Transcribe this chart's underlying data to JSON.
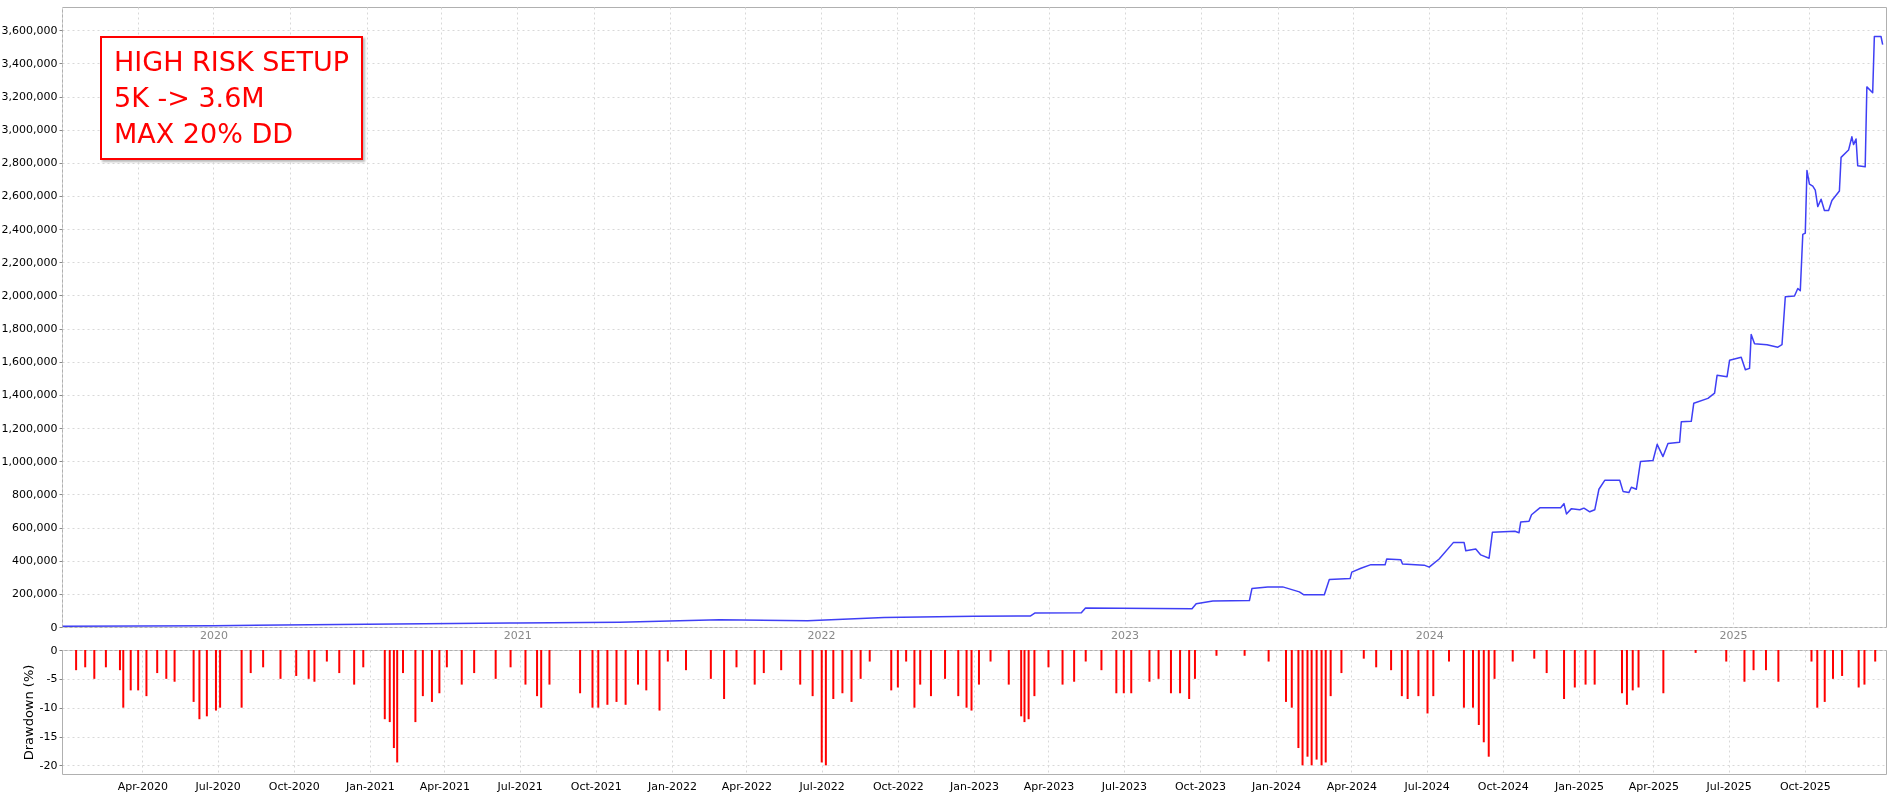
{
  "chart_data": [
    {
      "type": "line",
      "annotations": [
        "HIGH RISK SETUP",
        "5K -> 3.6M",
        "MAX 20% DD"
      ],
      "x": [
        "2020-01-02",
        "2020-07-01",
        "2021-01-01",
        "2021-07-01",
        "2021-11-01",
        "2022-03-01",
        "2022-06-15",
        "2022-09-15",
        "2023-01-01",
        "2023-03-10",
        "2023-03-15",
        "2023-05-10",
        "2023-05-15",
        "2023-09-20",
        "2023-09-25",
        "2023-10-15",
        "2023-11-28",
        "2023-12-01",
        "2023-12-20",
        "2024-01-07",
        "2024-01-27",
        "2024-02-01",
        "2024-02-26",
        "2024-03-03",
        "2024-03-28",
        "2024-03-30",
        "2024-04-10",
        "2024-04-22",
        "2024-05-09",
        "2024-05-11",
        "2024-05-28",
        "2024-05-30",
        "2024-06-25",
        "2024-07-01",
        "2024-07-13",
        "2024-07-30",
        "2024-08-12",
        "2024-08-14",
        "2024-08-26",
        "2024-09-01",
        "2024-09-11",
        "2024-09-15",
        "2024-10-12",
        "2024-10-17",
        "2024-10-19",
        "2024-10-29",
        "2024-11-01",
        "2024-11-11",
        "2024-12-06",
        "2024-12-10",
        "2024-12-13",
        "2024-12-19",
        "2024-12-29",
        "2025-01-03",
        "2025-01-10",
        "2025-01-16",
        "2025-01-21",
        "2025-01-28",
        "2025-02-15",
        "2025-02-19",
        "2025-02-26",
        "2025-03-01",
        "2025-03-07",
        "2025-03-12",
        "2025-03-27",
        "2025-04-01",
        "2025-04-08",
        "2025-04-14",
        "2025-04-28",
        "2025-04-30",
        "2025-05-12",
        "2025-05-15",
        "2025-06-01",
        "2025-06-09",
        "2025-06-12",
        "2025-06-24",
        "2025-06-27",
        "2025-07-11",
        "2025-07-16",
        "2025-07-21",
        "2025-07-23",
        "2025-07-27",
        "2025-08-11",
        "2025-08-24",
        "2025-08-29",
        "2025-09-02",
        "2025-09-13",
        "2025-09-17",
        "2025-09-20",
        "2025-09-23",
        "2025-09-26",
        "2025-09-28",
        "2025-10-01",
        "2025-10-05",
        "2025-10-08",
        "2025-10-11",
        "2025-10-15",
        "2025-10-19",
        "2025-10-24",
        "2025-10-28",
        "2025-11-06",
        "2025-11-08",
        "2025-11-17",
        "2025-11-21",
        "2025-11-23",
        "2025-11-26",
        "2025-11-28",
        "2025-12-07",
        "2025-12-09",
        "2025-12-16",
        "2025-12-18",
        "2025-12-26",
        "2025-12-28"
      ],
      "series": [
        {
          "color": "#3f3ff5",
          "values": [
            5000,
            8000,
            17000,
            24000,
            29000,
            44000,
            37000,
            58000,
            65000,
            67000,
            84000,
            86000,
            115000,
            110000,
            140000,
            157000,
            160000,
            232000,
            242000,
            242000,
            212000,
            195000,
            195000,
            287000,
            292000,
            331000,
            354000,
            376000,
            375000,
            410000,
            405000,
            380000,
            373000,
            361000,
            410000,
            509000,
            509000,
            460000,
            470000,
            435000,
            415000,
            571000,
            578000,
            569000,
            633000,
            638000,
            677000,
            719000,
            719000,
            744000,
            682000,
            714000,
            707000,
            717000,
            695000,
            707000,
            831000,
            885000,
            885000,
            818000,
            811000,
            843000,
            831000,
            999000,
            1004000,
            1102000,
            1028000,
            1107000,
            1115000,
            1238000,
            1241000,
            1350000,
            1379000,
            1411000,
            1518000,
            1510000,
            1609000,
            1627000,
            1552000,
            1560000,
            1765000,
            1708000,
            1703000,
            1688000,
            1703000,
            1992000,
            1997000,
            2042000,
            2029000,
            2368000,
            2376000,
            2754000,
            2672000,
            2660000,
            2635000,
            2536000,
            2580000,
            2512000,
            2512000,
            2573000,
            2630000,
            2833000,
            2877000,
            2957000,
            2910000,
            2944000,
            2783000,
            2776000,
            3258000,
            3223000,
            3562000,
            3562000,
            3513000
          ]
        }
      ],
      "xlim": [
        "2020-01-01",
        "2026-01-01"
      ],
      "xticks": [
        {
          "value": "2020-01-01",
          "label": null
        },
        {
          "value": "2020-04-01",
          "label": null
        },
        {
          "value": "2020-07-01",
          "label": "2020"
        },
        {
          "value": "2020-10-01",
          "label": null
        },
        {
          "value": "2021-01-01",
          "label": null
        },
        {
          "value": "2021-04-01",
          "label": null
        },
        {
          "value": "2021-07-01",
          "label": "2021"
        },
        {
          "value": "2021-10-01",
          "label": null
        },
        {
          "value": "2022-01-01",
          "label": null
        },
        {
          "value": "2022-04-01",
          "label": null
        },
        {
          "value": "2022-07-01",
          "label": "2022"
        },
        {
          "value": "2022-10-01",
          "label": null
        },
        {
          "value": "2023-01-01",
          "label": null
        },
        {
          "value": "2023-04-01",
          "label": null
        },
        {
          "value": "2023-07-01",
          "label": "2023"
        },
        {
          "value": "2023-10-01",
          "label": null
        },
        {
          "value": "2024-01-01",
          "label": null
        },
        {
          "value": "2024-04-01",
          "label": null
        },
        {
          "value": "2024-07-01",
          "label": "2024"
        },
        {
          "value": "2024-10-01",
          "label": null
        },
        {
          "value": "2025-01-01",
          "label": null
        },
        {
          "value": "2025-04-01",
          "label": null
        },
        {
          "value": "2025-07-01",
          "label": "2025"
        },
        {
          "value": "2025-10-01",
          "label": null
        }
      ],
      "ylim": [
        0,
        3740000
      ],
      "yticks": [
        0,
        {
          "value": 200000,
          "label": "200,000"
        },
        {
          "value": 400000,
          "label": "400,000"
        },
        {
          "value": 600000,
          "label": "600,000"
        },
        {
          "value": 800000,
          "label": "800,000"
        },
        {
          "value": 1000000,
          "label": "1,000,000"
        },
        {
          "value": 1200000,
          "label": "1,200,000"
        },
        {
          "value": 1400000,
          "label": "1,400,000"
        },
        {
          "value": 1600000,
          "label": "1,600,000"
        },
        {
          "value": 1800000,
          "label": "1,800,000"
        },
        {
          "value": 2000000,
          "label": "2,000,000"
        },
        {
          "value": 2200000,
          "label": "2,200,000"
        },
        {
          "value": 2400000,
          "label": "2,400,000"
        },
        {
          "value": 2600000,
          "label": "2,600,000"
        },
        {
          "value": 2800000,
          "label": "2,800,000"
        },
        {
          "value": 3000000,
          "label": "3,000,000"
        },
        {
          "value": 3200000,
          "label": "3,200,000"
        },
        {
          "value": 3400000,
          "label": "3,400,000"
        },
        {
          "value": 3600000,
          "label": "3,600,000"
        }
      ],
      "grid": true
    },
    {
      "type": "bar",
      "ylabel": "Drawdown (%)",
      "x": [
        "2020-01-12",
        "2020-01-23",
        "2020-02-03",
        "2020-02-17",
        "2020-03-05",
        "2020-03-09",
        "2020-03-18",
        "2020-03-27",
        "2020-04-06",
        "2020-04-19",
        "2020-04-30",
        "2020-05-10",
        "2020-06-02",
        "2020-06-09",
        "2020-06-18",
        "2020-06-29",
        "2020-07-04",
        "2020-07-30",
        "2020-08-10",
        "2020-08-25",
        "2020-09-15",
        "2020-10-04",
        "2020-10-19",
        "2020-10-26",
        "2020-11-10",
        "2020-11-25",
        "2020-12-13",
        "2020-12-24",
        "2021-01-19",
        "2021-01-25",
        "2021-01-30",
        "2021-02-03",
        "2021-02-10",
        "2021-02-25",
        "2021-03-06",
        "2021-03-17",
        "2021-03-26",
        "2021-04-04",
        "2021-04-22",
        "2021-05-07",
        "2021-06-02",
        "2021-06-20",
        "2021-07-08",
        "2021-07-22",
        "2021-07-27",
        "2021-08-06",
        "2021-09-12",
        "2021-09-27",
        "2021-10-04",
        "2021-10-15",
        "2021-10-26",
        "2021-11-06",
        "2021-11-21",
        "2021-12-01",
        "2021-12-17",
        "2021-12-27",
        "2022-01-18",
        "2022-02-17",
        "2022-03-05",
        "2022-03-20",
        "2022-04-11",
        "2022-04-22",
        "2022-05-13",
        "2022-06-05",
        "2022-06-20",
        "2022-07-01",
        "2022-07-06",
        "2022-07-15",
        "2022-07-26",
        "2022-08-06",
        "2022-08-17",
        "2022-08-28",
        "2022-09-23",
        "2022-10-01",
        "2022-10-11",
        "2022-10-21",
        "2022-10-28",
        "2022-11-10",
        "2022-11-27",
        "2022-12-13",
        "2022-12-23",
        "2022-12-29",
        "2023-01-07",
        "2023-01-21",
        "2023-02-12",
        "2023-02-27",
        "2023-03-03",
        "2023-03-08",
        "2023-03-15",
        "2023-04-01",
        "2023-04-18",
        "2023-05-02",
        "2023-05-16",
        "2023-06-04",
        "2023-06-22",
        "2023-07-01",
        "2023-07-10",
        "2023-08-01",
        "2023-08-12",
        "2023-08-27",
        "2023-09-07",
        "2023-09-18",
        "2023-09-25",
        "2023-10-21",
        "2023-11-24",
        "2023-12-23",
        "2024-01-13",
        "2024-01-20",
        "2024-01-28",
        "2024-02-02",
        "2024-02-08",
        "2024-02-13",
        "2024-02-19",
        "2024-02-25",
        "2024-03-01",
        "2024-03-07",
        "2024-03-20",
        "2024-04-16",
        "2024-05-01",
        "2024-05-19",
        "2024-06-01",
        "2024-06-08",
        "2024-06-21",
        "2024-07-02",
        "2024-07-09",
        "2024-07-28",
        "2024-08-15",
        "2024-08-26",
        "2024-09-02",
        "2024-09-08",
        "2024-09-14",
        "2024-09-21",
        "2024-10-13",
        "2024-11-08",
        "2024-11-23",
        "2024-12-14",
        "2024-12-27",
        "2025-01-09",
        "2025-01-20",
        "2025-02-22",
        "2025-02-28",
        "2025-03-07",
        "2025-03-14",
        "2025-04-13",
        "2025-05-22",
        "2025-06-28",
        "2025-07-20",
        "2025-07-31",
        "2025-08-15",
        "2025-08-30",
        "2025-10-09",
        "2025-10-16",
        "2025-10-25",
        "2025-11-04",
        "2025-11-15",
        "2025-12-05",
        "2025-12-12",
        "2025-12-25"
      ],
      "series": [
        {
          "color": "#ff0000",
          "values": [
            -3.5,
            -3,
            -5,
            -3,
            -3.5,
            -10,
            -7,
            -7,
            -8,
            -4,
            -5,
            -5.5,
            -9,
            -12,
            -11.5,
            -10.5,
            -10,
            -10,
            -4,
            -3,
            -5,
            -4.5,
            -5,
            -5.5,
            -2,
            -4,
            -6,
            -3,
            -12,
            -12.5,
            -17,
            -19.5,
            -4,
            -12.5,
            -8,
            -9,
            -7.5,
            -3,
            -6,
            -4,
            -5,
            -3,
            -6,
            -8,
            -10,
            -6,
            -7.5,
            -10,
            -10,
            -9.5,
            -9,
            -9.5,
            -6,
            -7,
            -10.5,
            -2,
            -3.5,
            -5,
            -8.5,
            -3,
            -6,
            -4,
            -3.5,
            -6,
            -8,
            -19.5,
            -20,
            -8.5,
            -7.5,
            -9,
            -5,
            -2,
            -7,
            -6.5,
            -2,
            -10,
            -6,
            -8,
            -5,
            -8,
            -10,
            -10.5,
            -6,
            -2,
            -6,
            -11.5,
            -12.5,
            -12,
            -8,
            -3,
            -6,
            -5.5,
            -2,
            -3.5,
            -7.5,
            -7.5,
            -7.5,
            -5.5,
            -5,
            -7.5,
            -7.5,
            -8.5,
            -5,
            -1,
            -1,
            -2,
            -9,
            -10,
            -17,
            -20,
            -18.5,
            -20,
            -19,
            -20,
            -19.5,
            -8,
            -4,
            -1.5,
            -3,
            -3.5,
            -8,
            -8.5,
            -8,
            -11,
            -8,
            -2,
            -10,
            -10,
            -13,
            -16,
            -18.5,
            -5,
            -2,
            -1.5,
            -4,
            -8.5,
            -6.5,
            -6,
            -6,
            -7.5,
            -9.5,
            -7,
            -6.5,
            -7.5,
            -0.5,
            -2,
            -5.5,
            -3.5,
            -3.5,
            -5.5,
            -2,
            -10,
            -9,
            -5,
            -4.5,
            -6.5,
            -6,
            -2
          ]
        }
      ],
      "xlim": [
        "2020-01-01",
        "2026-01-01"
      ],
      "xticks": [
        {
          "value": "2020-04-01",
          "label": "Apr-2020"
        },
        {
          "value": "2020-07-01",
          "label": "Jul-2020"
        },
        {
          "value": "2020-10-01",
          "label": "Oct-2020"
        },
        {
          "value": "2021-01-01",
          "label": "Jan-2021"
        },
        {
          "value": "2021-04-01",
          "label": "Apr-2021"
        },
        {
          "value": "2021-07-01",
          "label": "Jul-2021"
        },
        {
          "value": "2021-10-01",
          "label": "Oct-2021"
        },
        {
          "value": "2022-01-01",
          "label": "Jan-2022"
        },
        {
          "value": "2022-04-01",
          "label": "Apr-2022"
        },
        {
          "value": "2022-07-01",
          "label": "Jul-2022"
        },
        {
          "value": "2022-10-01",
          "label": "Oct-2022"
        },
        {
          "value": "2023-01-01",
          "label": "Jan-2023"
        },
        {
          "value": "2023-04-01",
          "label": "Apr-2023"
        },
        {
          "value": "2023-07-01",
          "label": "Jul-2023"
        },
        {
          "value": "2023-10-01",
          "label": "Oct-2023"
        },
        {
          "value": "2024-01-01",
          "label": "Jan-2024"
        },
        {
          "value": "2024-04-01",
          "label": "Apr-2024"
        },
        {
          "value": "2024-07-01",
          "label": "Jul-2024"
        },
        {
          "value": "2024-10-01",
          "label": "Oct-2024"
        },
        {
          "value": "2025-01-01",
          "label": "Jan-2025"
        },
        {
          "value": "2025-04-01",
          "label": "Apr-2025"
        },
        {
          "value": "2025-07-01",
          "label": "Jul-2025"
        },
        {
          "value": "2025-10-01",
          "label": "Oct-2025"
        }
      ],
      "ylim": [
        -21.5,
        0
      ],
      "yticks": [
        0,
        -5,
        -10,
        -15,
        -20
      ],
      "grid": true
    }
  ]
}
